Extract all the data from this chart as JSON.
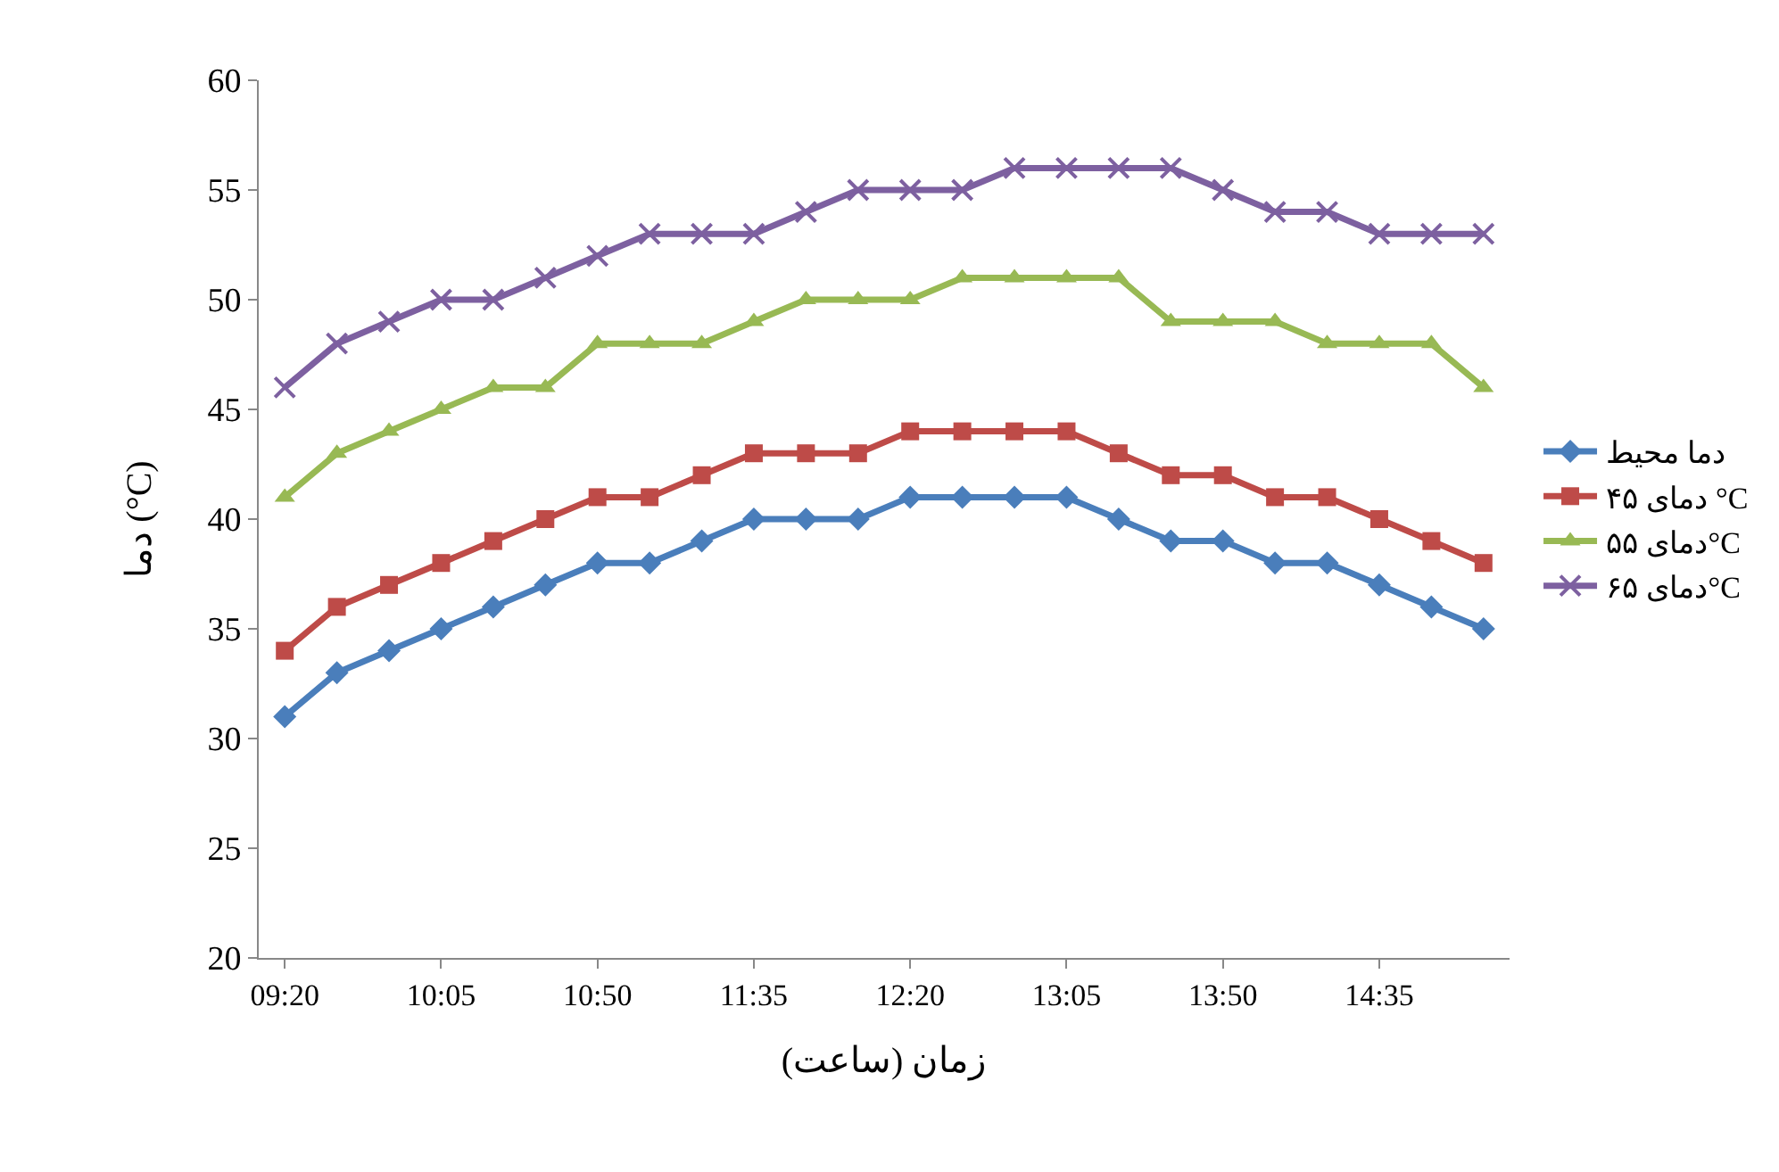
{
  "chart_data": {
    "type": "line",
    "xlabel": "زمان (ساعت)",
    "ylabel": "دما (°C)",
    "categories": [
      "09:20",
      null,
      null,
      "10:05",
      null,
      null,
      "10:50",
      null,
      null,
      "11:35",
      null,
      null,
      "12:20",
      null,
      null,
      "13:05",
      null,
      null,
      "13:50",
      null,
      null,
      "14:35",
      null,
      null
    ],
    "ylim": [
      20,
      60
    ],
    "yticks": [
      20,
      25,
      30,
      35,
      40,
      45,
      50,
      55,
      60
    ],
    "grid": false,
    "legend": "right",
    "line_style": "solid",
    "series": [
      {
        "name": "دما محیط",
        "color": "#4a7ebb",
        "marker": "diamond",
        "values": [
          31,
          33,
          34,
          35,
          36,
          37,
          38,
          38,
          39,
          40,
          40,
          40,
          41,
          41,
          41,
          41,
          40,
          39,
          39,
          38,
          38,
          37,
          36,
          35
        ]
      },
      {
        "name": "دمای ۴۵ °C",
        "color": "#be4b48",
        "marker": "square",
        "values": [
          34,
          36,
          37,
          38,
          39,
          40,
          41,
          41,
          42,
          43,
          43,
          43,
          44,
          44,
          44,
          44,
          43,
          42,
          42,
          41,
          41,
          40,
          39,
          38
        ]
      },
      {
        "name": "دمای ۵۵°C",
        "color": "#98b954",
        "marker": "triangle",
        "values": [
          41,
          43,
          44,
          45,
          46,
          46,
          48,
          48,
          48,
          49,
          50,
          50,
          50,
          51,
          51,
          51,
          51,
          49,
          49,
          49,
          48,
          48,
          48,
          46
        ]
      },
      {
        "name": "دمای ۶۵°C",
        "color": "#7d60a0",
        "marker": "cross",
        "values": [
          46,
          48,
          49,
          50,
          50,
          51,
          52,
          53,
          53,
          53,
          54,
          55,
          55,
          55,
          56,
          56,
          56,
          56,
          55,
          54,
          54,
          53,
          53,
          53
        ]
      }
    ]
  }
}
